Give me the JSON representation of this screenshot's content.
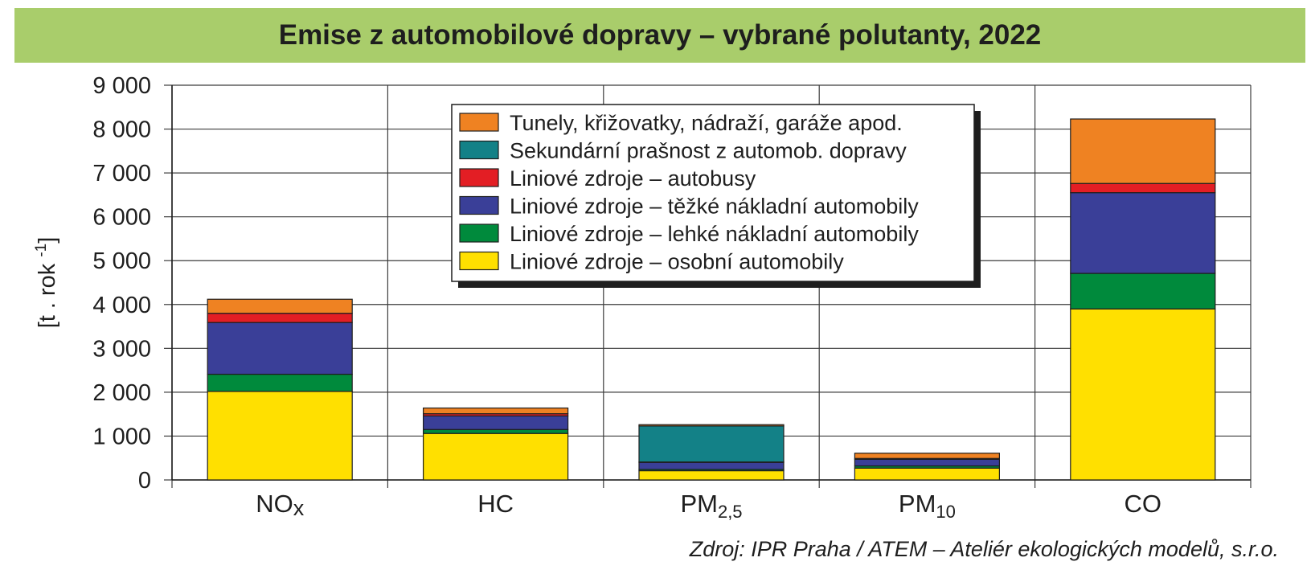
{
  "chart_data": {
    "type": "bar",
    "stacked": true,
    "title": "Emise z automobilové dopravy – vybrané polutanty, 2022",
    "ylabel": [
      "[t . rok ",
      "-1",
      "]"
    ],
    "xlabel": "",
    "ylim": [
      0,
      9000
    ],
    "yticks": [
      0,
      1000,
      2000,
      3000,
      4000,
      5000,
      6000,
      7000,
      8000,
      9000
    ],
    "ytick_labels": [
      "0",
      "1 000",
      "2 000",
      "3 000",
      "4 000",
      "5 000",
      "6 000",
      "7 000",
      "8 000",
      "9 000"
    ],
    "grid": true,
    "legend_position": "top-center",
    "categories": [
      {
        "main": "NO",
        "sub": "x",
        "sub_style": "lower"
      },
      {
        "main": "HC",
        "sub": "",
        "sub_style": ""
      },
      {
        "main": "PM",
        "sub": "2,5",
        "sub_style": "subscript"
      },
      {
        "main": "PM",
        "sub": "10",
        "sub_style": "subscript"
      },
      {
        "main": "CO",
        "sub": "",
        "sub_style": ""
      }
    ],
    "series": [
      {
        "name": "Liniové zdroje – osobní automobily",
        "color": "#ffe000",
        "values": [
          2020,
          1060,
          210,
          270,
          3900
        ]
      },
      {
        "name": "Liniové zdroje – lehké nákladní automobily",
        "color": "#008a3c",
        "values": [
          390,
          90,
          30,
          50,
          810
        ]
      },
      {
        "name": "Liniové zdroje – těžké nákladní automobily",
        "color": "#3a3f98",
        "values": [
          1180,
          310,
          160,
          150,
          1840
        ]
      },
      {
        "name": "Liniové zdroje – autobusy",
        "color": "#e31e24",
        "values": [
          210,
          50,
          10,
          20,
          210
        ]
      },
      {
        "name": "Sekundární prašnost z automob. dopravy",
        "color": "#138187",
        "values": [
          0,
          0,
          820,
          0,
          0
        ]
      },
      {
        "name": "Tunely, křižovatky, nádraží, garáže apod.",
        "color": "#ef8222",
        "values": [
          320,
          130,
          30,
          120,
          1470
        ]
      }
    ]
  },
  "source": "Zdroj: IPR Praha / ATEM – Ateliér ekologických modelů, s.r.o."
}
